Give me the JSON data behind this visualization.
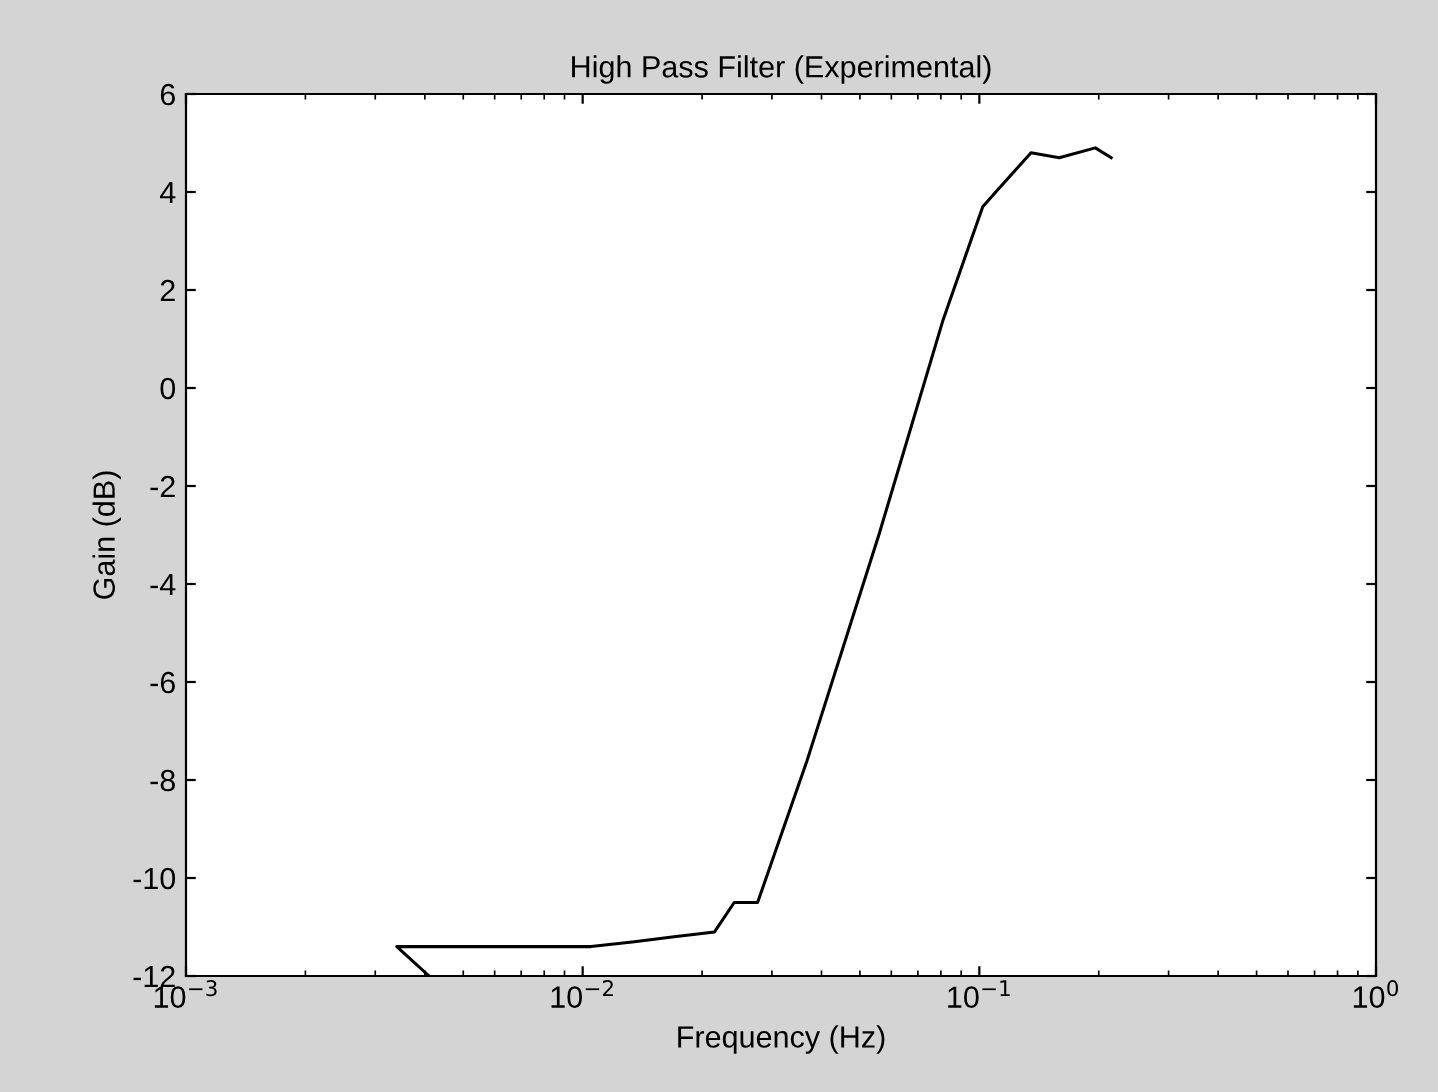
{
  "chart_data": {
    "type": "line",
    "title": "High Pass Filter (Experimental)",
    "xlabel": "Frequency (Hz)",
    "ylabel": "Gain (dB)",
    "log": "x",
    "grid": false,
    "legend": false,
    "x": [
      0.0041,
      0.0034,
      0.0105,
      0.0135,
      0.017,
      0.0215,
      0.0241,
      0.0276,
      0.0368,
      0.0558,
      0.0811,
      0.102,
      0.11,
      0.135,
      0.159,
      0.196,
      0.215
    ],
    "series": [
      {
        "color": "#000000",
        "values": [
          -12,
          -11.4,
          -11.4,
          -11.3,
          -11.2,
          -11.1,
          -10.5,
          -10.5,
          -7.6,
          -3,
          1.4,
          3.7,
          4,
          4.8,
          4.7,
          4.9,
          4.7
        ]
      }
    ],
    "xlim": [
      0.001,
      1
    ],
    "xticks": [
      {
        "value": 0.001,
        "label": "10$^{−3}$"
      },
      {
        "value": 0.01,
        "label": "10$^{−2}$"
      },
      {
        "value": 0.1,
        "label": "10$^{−1}$"
      },
      {
        "value": 1,
        "label": "10$^{0}$"
      }
    ],
    "ylim": [
      -12,
      6
    ],
    "yticks": [
      -12,
      -10,
      -8,
      -6,
      -4,
      -2,
      0,
      2,
      4,
      6
    ]
  }
}
